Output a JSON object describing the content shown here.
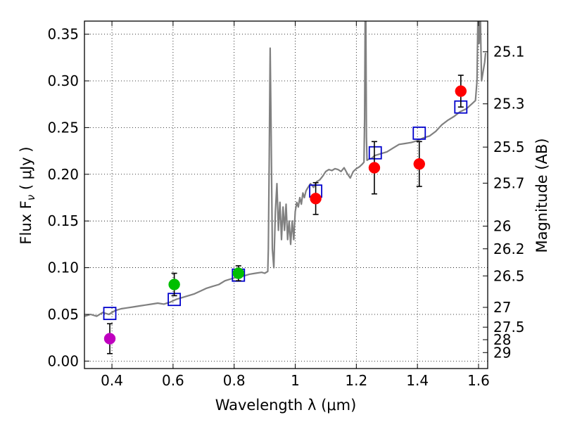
{
  "chart_data": {
    "type": "scatter",
    "xlabel": "Wavelength  λ (μm)",
    "ylabel": "Flux  F",
    "ylabel_sub": "ν",
    "ylabel_unit": "  ( μJy )",
    "y2label": "Magnitude (AB)",
    "xlim": [
      0.31,
      1.63
    ],
    "ylim": [
      -0.008,
      0.364
    ],
    "grid": true,
    "x_ticks": [
      0.4,
      0.6,
      0.8,
      1.0,
      1.2,
      1.4,
      1.6
    ],
    "x_tick_labels": [
      "0.4",
      "0.6",
      "0.8",
      "1",
      "1.2",
      "1.4",
      "1.6"
    ],
    "y_ticks": [
      0.0,
      0.05,
      0.1,
      0.15,
      0.2,
      0.25,
      0.3,
      0.35
    ],
    "y_tick_labels": [
      "0.00",
      "0.05",
      "0.10",
      "0.15",
      "0.20",
      "0.25",
      "0.30",
      "0.35"
    ],
    "mag_ticks": [
      {
        "label": "25.1",
        "flux": 0.3311
      },
      {
        "label": "25.3",
        "flux": 0.2754
      },
      {
        "label": "25.5",
        "flux": 0.2291
      },
      {
        "label": "25.7",
        "flux": 0.1905
      },
      {
        "label": "26",
        "flux": 0.1445
      },
      {
        "label": "26.2",
        "flux": 0.1202
      },
      {
        "label": "26.5",
        "flux": 0.0912
      },
      {
        "label": "27",
        "flux": 0.0575
      },
      {
        "label": "27.5",
        "flux": 0.0363
      },
      {
        "label": "28",
        "flux": 0.0229
      },
      {
        "label": "29",
        "flux": 0.0091
      }
    ],
    "series": [
      {
        "kind": "line",
        "color": "#808080",
        "x": [
          0.31,
          0.33,
          0.35,
          0.37,
          0.39,
          0.41,
          0.43,
          0.45,
          0.47,
          0.49,
          0.51,
          0.53,
          0.55,
          0.57,
          0.59,
          0.61,
          0.63,
          0.65,
          0.67,
          0.69,
          0.71,
          0.73,
          0.75,
          0.77,
          0.79,
          0.81,
          0.83,
          0.85,
          0.87,
          0.89,
          0.9,
          0.91,
          0.912,
          0.915,
          0.918,
          0.921,
          0.925,
          0.93,
          0.935,
          0.94,
          0.945,
          0.95,
          0.955,
          0.96,
          0.965,
          0.97,
          0.975,
          0.98,
          0.985,
          0.99,
          0.995,
          1.0,
          1.005,
          1.01,
          1.015,
          1.02,
          1.025,
          1.03,
          1.035,
          1.04,
          1.05,
          1.06,
          1.07,
          1.08,
          1.09,
          1.1,
          1.11,
          1.12,
          1.13,
          1.14,
          1.15,
          1.16,
          1.17,
          1.18,
          1.19,
          1.2,
          1.21,
          1.22,
          1.225,
          1.227,
          1.229,
          1.231,
          1.233,
          1.235,
          1.24,
          1.25,
          1.26,
          1.28,
          1.3,
          1.32,
          1.34,
          1.36,
          1.38,
          1.4,
          1.42,
          1.44,
          1.46,
          1.48,
          1.5,
          1.52,
          1.54,
          1.56,
          1.57,
          1.58,
          1.59,
          1.595,
          1.598,
          1.6,
          1.602,
          1.604,
          1.606,
          1.608,
          1.61,
          1.615,
          1.62,
          1.623
        ],
        "y": [
          0.048,
          0.05,
          0.048,
          0.052,
          0.05,
          0.054,
          0.056,
          0.057,
          0.058,
          0.059,
          0.06,
          0.061,
          0.062,
          0.061,
          0.063,
          0.066,
          0.068,
          0.07,
          0.072,
          0.075,
          0.078,
          0.08,
          0.082,
          0.086,
          0.088,
          0.09,
          0.091,
          0.093,
          0.094,
          0.095,
          0.094,
          0.096,
          0.12,
          0.22,
          0.335,
          0.25,
          0.12,
          0.1,
          0.16,
          0.19,
          0.14,
          0.17,
          0.13,
          0.165,
          0.14,
          0.168,
          0.13,
          0.15,
          0.125,
          0.15,
          0.13,
          0.16,
          0.17,
          0.165,
          0.175,
          0.168,
          0.18,
          0.175,
          0.182,
          0.185,
          0.19,
          0.186,
          0.192,
          0.194,
          0.198,
          0.203,
          0.205,
          0.204,
          0.206,
          0.205,
          0.203,
          0.207,
          0.201,
          0.196,
          0.203,
          0.206,
          0.208,
          0.211,
          0.213,
          0.26,
          0.37,
          0.37,
          0.24,
          0.215,
          0.216,
          0.217,
          0.22,
          0.222,
          0.224,
          0.228,
          0.232,
          0.233,
          0.234,
          0.236,
          0.239,
          0.241,
          0.246,
          0.253,
          0.258,
          0.262,
          0.267,
          0.27,
          0.273,
          0.276,
          0.279,
          0.3,
          0.37,
          0.37,
          0.34,
          0.37,
          0.37,
          0.33,
          0.3,
          0.31,
          0.32,
          0.33
        ]
      },
      {
        "kind": "markers",
        "marker": "square",
        "edgecolor": "#0000cc",
        "x": [
          0.393,
          0.604,
          0.814,
          1.067,
          1.262,
          1.406,
          1.542
        ],
        "y": [
          0.051,
          0.066,
          0.092,
          0.182,
          0.223,
          0.244,
          0.272
        ]
      },
      {
        "kind": "errorpoints",
        "marker": "circle",
        "x": [
          0.393,
          0.604,
          0.814,
          1.067,
          1.259,
          1.406,
          1.542
        ],
        "y": [
          0.024,
          0.082,
          0.094,
          0.174,
          0.207,
          0.211,
          0.289
        ],
        "yerr": [
          0.016,
          0.012,
          0.008,
          0.017,
          0.028,
          0.024,
          0.017
        ],
        "colors": [
          "#bf00bf",
          "#00bf00",
          "#00bf00",
          "#ff0000",
          "#ff0000",
          "#ff0000",
          "#ff0000"
        ]
      }
    ]
  }
}
